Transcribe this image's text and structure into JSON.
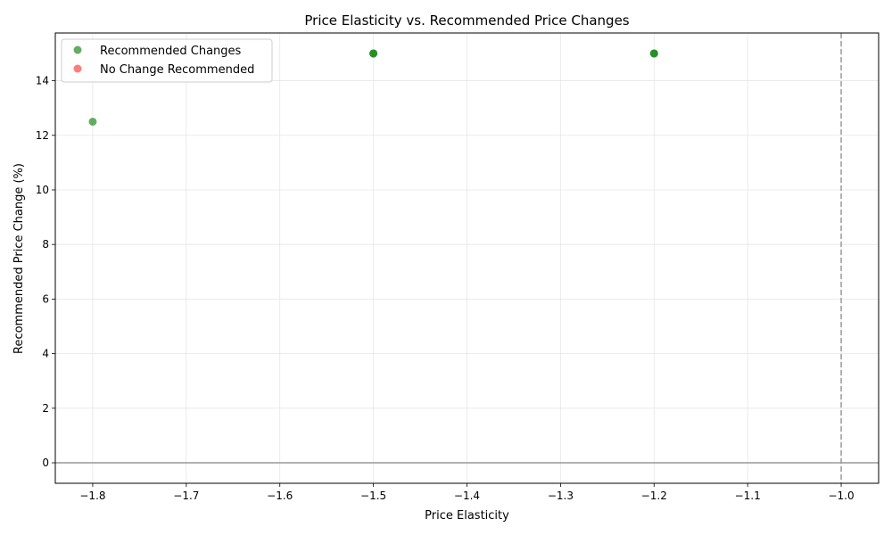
{
  "chart_data": {
    "type": "scatter",
    "title": "Price Elasticity vs. Recommended Price Changes",
    "xlabel": "Price Elasticity",
    "ylabel": "Recommended Price Change (%)",
    "xlim": [
      -1.84,
      -0.96
    ],
    "ylim": [
      -0.75,
      15.75
    ],
    "xticks": [
      -1.8,
      -1.7,
      -1.6,
      -1.5,
      -1.4,
      -1.3,
      -1.2,
      -1.1,
      -1.0
    ],
    "xtick_labels": [
      "−1.8",
      "−1.7",
      "−1.6",
      "−1.5",
      "−1.4",
      "−1.3",
      "−1.2",
      "−1.1",
      "−1.0"
    ],
    "yticks": [
      0,
      2,
      4,
      6,
      8,
      10,
      12,
      14
    ],
    "ytick_labels": [
      "0",
      "2",
      "4",
      "6",
      "8",
      "10",
      "12",
      "14"
    ],
    "grid": true,
    "legend_position": "top-left",
    "reference_lines": {
      "horizontal_y": 0,
      "vertical_x": -1.0
    },
    "series": [
      {
        "name": "Recommended Changes",
        "color": "#228b22",
        "points": [
          {
            "x": -1.8,
            "y": 12.5
          },
          {
            "x": -1.5,
            "y": 15
          },
          {
            "x": -1.5,
            "y": 15
          },
          {
            "x": -1.5,
            "y": 15
          },
          {
            "x": -1.2,
            "y": 15
          },
          {
            "x": -1.2,
            "y": 15
          },
          {
            "x": -1.2,
            "y": 15
          }
        ]
      },
      {
        "name": "No Change Recommended",
        "color": "#ff4444",
        "points": []
      }
    ]
  }
}
